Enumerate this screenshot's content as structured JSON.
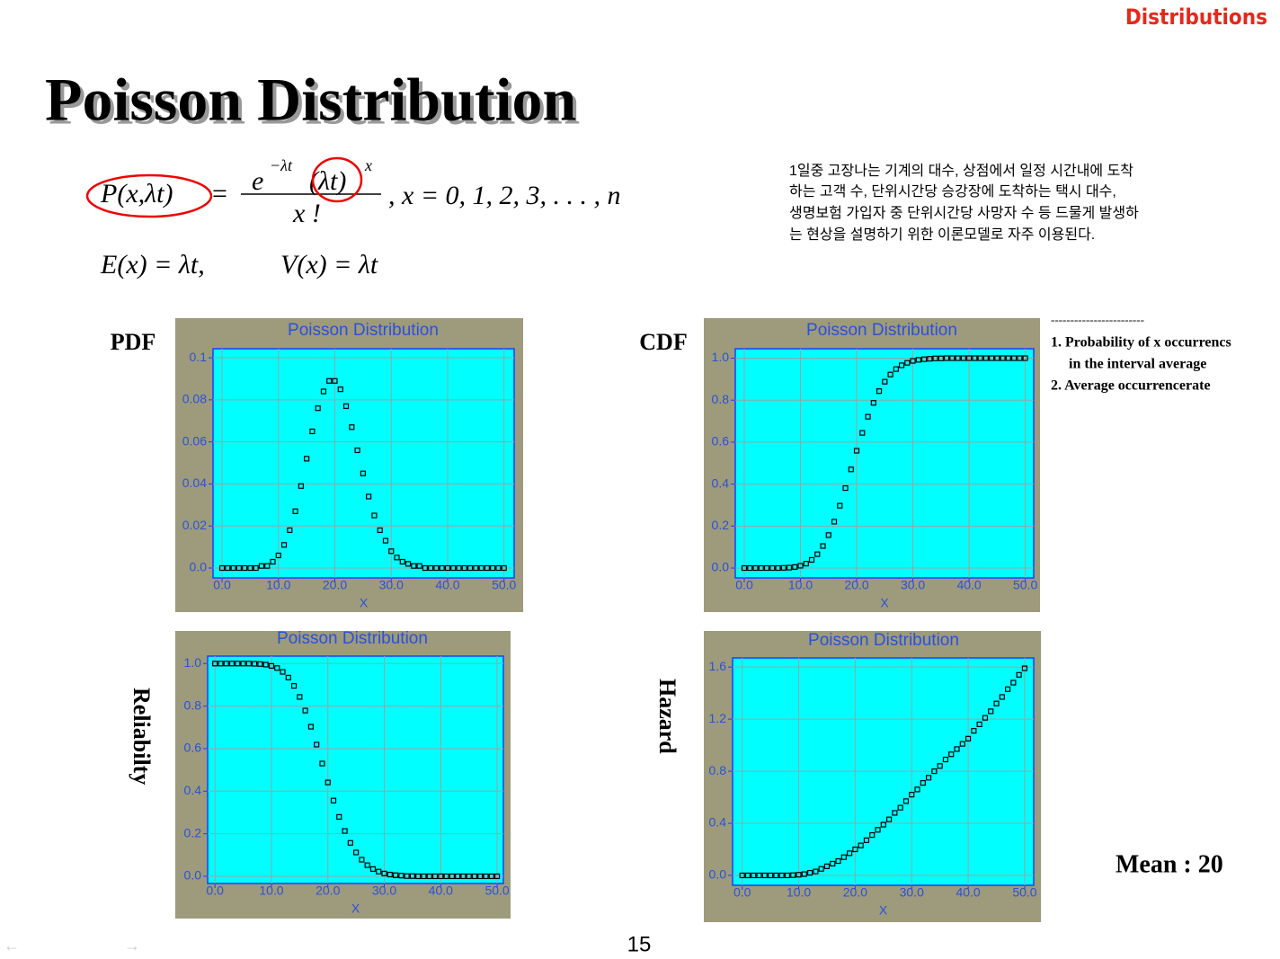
{
  "header": "Distributions",
  "title": "Poisson Distribution",
  "formula": {
    "lhs": "P(x,λt)",
    "eq": "=",
    "base": "e",
    "base_exp": "−λt",
    "mid": "(λt)",
    "mid_exp": "x",
    "denominator": "x !",
    "domain": ",    x = 0, 1, 2, 3, . . . , n",
    "mean": "E(x) = λt,",
    "variance": "V(x) = λt"
  },
  "description": [
    "1일중 고장나는 기계의 대수, 상점에서 일정 시간내에 도착",
    "하는 고객 수, 단위시간당 승강장에 도착하는 택시 대수,",
    "생명보험 가입자 중 단위시간당 사망자 수 등 드물게 발생하",
    "는 현상을 설명하기 위한 이론모델로 자주 이용된다."
  ],
  "notes": [
    "------------------------",
    "1. Probability of x occurrencs",
    "in the interval average",
    "2. Average occurrencerate"
  ],
  "mean_label": "Mean : 20",
  "page_number": "15",
  "chart_data": [
    {
      "type": "scatter",
      "side_label": "PDF",
      "title": "Poisson Distribution",
      "xlabel": "X",
      "color": "#000000",
      "grid": true,
      "x": [
        0,
        1,
        2,
        3,
        4,
        5,
        6,
        7,
        8,
        9,
        10,
        11,
        12,
        13,
        14,
        15,
        16,
        17,
        18,
        19,
        20,
        21,
        22,
        23,
        24,
        25,
        26,
        27,
        28,
        29,
        30,
        31,
        32,
        33,
        34,
        35,
        36,
        37,
        38,
        39,
        40,
        41,
        42,
        43,
        44,
        45,
        46,
        47,
        48,
        49,
        50
      ],
      "values": [
        0,
        0,
        0,
        0,
        0,
        0,
        0,
        0.001,
        0.001,
        0.003,
        0.006,
        0.011,
        0.018,
        0.027,
        0.039,
        0.052,
        0.065,
        0.076,
        0.084,
        0.089,
        0.089,
        0.085,
        0.077,
        0.067,
        0.056,
        0.045,
        0.034,
        0.025,
        0.018,
        0.013,
        0.008,
        0.005,
        0.003,
        0.002,
        0.001,
        0.001,
        0,
        0,
        0,
        0,
        0,
        0,
        0,
        0,
        0,
        0,
        0,
        0,
        0,
        0,
        0
      ],
      "xlim": [
        -1.6,
        51.8
      ],
      "ylim": [
        -0.0047,
        0.1043
      ],
      "xticks": [
        {
          "value": 0,
          "label": "0.0"
        },
        {
          "value": 10,
          "label": "10.0"
        },
        {
          "value": 20,
          "label": "20.0"
        },
        {
          "value": 30,
          "label": "30.0"
        },
        {
          "value": 40,
          "label": "40.0"
        },
        {
          "value": 50,
          "label": "50.0"
        }
      ],
      "yticks": [
        {
          "value": 0,
          "label": "0.0"
        },
        0.02,
        0.04,
        0.06,
        0.08,
        0.1
      ]
    },
    {
      "type": "scatter",
      "side_label": "CDF",
      "title": "Poisson Distribution",
      "xlabel": "X",
      "color": "#000000",
      "grid": true,
      "x": [
        0,
        1,
        2,
        3,
        4,
        5,
        6,
        7,
        8,
        9,
        10,
        11,
        12,
        13,
        14,
        15,
        16,
        17,
        18,
        19,
        20,
        21,
        22,
        23,
        24,
        25,
        26,
        27,
        28,
        29,
        30,
        31,
        32,
        33,
        34,
        35,
        36,
        37,
        38,
        39,
        40,
        41,
        42,
        43,
        44,
        45,
        46,
        47,
        48,
        49,
        50
      ],
      "values": [
        0,
        0,
        0,
        0,
        0,
        0,
        0,
        0.001,
        0.002,
        0.005,
        0.011,
        0.021,
        0.039,
        0.066,
        0.105,
        0.157,
        0.221,
        0.297,
        0.381,
        0.47,
        0.559,
        0.644,
        0.721,
        0.787,
        0.843,
        0.888,
        0.922,
        0.948,
        0.966,
        0.978,
        0.987,
        0.992,
        0.995,
        0.997,
        0.999,
        0.999,
        1,
        1,
        1,
        1,
        1,
        1,
        1,
        1,
        1,
        1,
        1,
        1,
        1,
        1,
        1
      ],
      "xlim": [
        -1.6,
        51.5
      ],
      "ylim": [
        -0.047,
        1.045
      ],
      "xticks": [
        {
          "value": 0,
          "label": "0.0"
        },
        {
          "value": 10,
          "label": "10.0"
        },
        {
          "value": 20,
          "label": "20.0"
        },
        {
          "value": 30,
          "label": "30.0"
        },
        {
          "value": 40,
          "label": "40.0"
        },
        {
          "value": 50,
          "label": "50.0"
        }
      ],
      "yticks": [
        {
          "value": 0,
          "label": "0.0"
        },
        0.2,
        0.4,
        0.6,
        0.8,
        {
          "value": 1,
          "label": "1.0"
        }
      ]
    },
    {
      "type": "scatter",
      "side_label": "Reliabilty",
      "title": "Poisson Distribution",
      "xlabel": "X",
      "color": "#000000",
      "grid": true,
      "x": [
        0,
        1,
        2,
        3,
        4,
        5,
        6,
        7,
        8,
        9,
        10,
        11,
        12,
        13,
        14,
        15,
        16,
        17,
        18,
        19,
        20,
        21,
        22,
        23,
        24,
        25,
        26,
        27,
        28,
        29,
        30,
        31,
        32,
        33,
        34,
        35,
        36,
        37,
        38,
        39,
        40,
        41,
        42,
        43,
        44,
        45,
        46,
        47,
        48,
        49,
        50
      ],
      "values": [
        1,
        1,
        1,
        1,
        1,
        1,
        1,
        0.999,
        0.998,
        0.995,
        0.989,
        0.979,
        0.961,
        0.934,
        0.895,
        0.843,
        0.779,
        0.703,
        0.619,
        0.53,
        0.441,
        0.356,
        0.279,
        0.213,
        0.157,
        0.112,
        0.078,
        0.052,
        0.034,
        0.022,
        0.013,
        0.008,
        0.005,
        0.003,
        0.001,
        0.001,
        0,
        0,
        0,
        0,
        0,
        0,
        0,
        0,
        0,
        0,
        0,
        0,
        0,
        0,
        0
      ],
      "xlim": [
        -1.3,
        51.1
      ],
      "ylim": [
        -0.034,
        1.035
      ],
      "xticks": [
        {
          "value": 0,
          "label": "0.0"
        },
        {
          "value": 10,
          "label": "10.0"
        },
        {
          "value": 20,
          "label": "20.0"
        },
        {
          "value": 30,
          "label": "30.0"
        },
        {
          "value": 40,
          "label": "40.0"
        },
        {
          "value": 50,
          "label": "50.0"
        }
      ],
      "yticks": [
        {
          "value": 0,
          "label": "0.0"
        },
        0.2,
        0.4,
        0.6,
        0.8,
        {
          "value": 1,
          "label": "1.0"
        }
      ]
    },
    {
      "type": "scatter",
      "side_label": "Hazard",
      "title": "Poisson Distribution",
      "xlabel": "X",
      "color": "#000000",
      "grid": true,
      "x": [
        0,
        1,
        2,
        3,
        4,
        5,
        6,
        7,
        8,
        9,
        10,
        11,
        12,
        13,
        14,
        15,
        16,
        17,
        18,
        19,
        20,
        21,
        22,
        23,
        24,
        25,
        26,
        27,
        28,
        29,
        30,
        31,
        32,
        33,
        34,
        35,
        36,
        37,
        38,
        39,
        40,
        41,
        42,
        43,
        44,
        45,
        46,
        47,
        48,
        49,
        50
      ],
      "values": [
        0,
        0,
        0,
        0,
        0,
        0,
        0,
        0,
        0,
        0.002,
        0.005,
        0.01,
        0.02,
        0.03,
        0.05,
        0.07,
        0.09,
        0.11,
        0.14,
        0.17,
        0.2,
        0.23,
        0.27,
        0.31,
        0.35,
        0.39,
        0.43,
        0.48,
        0.52,
        0.57,
        0.62,
        0.66,
        0.71,
        0.75,
        0.8,
        0.84,
        0.89,
        0.93,
        0.97,
        1.01,
        1.05,
        1.11,
        1.16,
        1.21,
        1.26,
        1.32,
        1.37,
        1.43,
        1.48,
        1.54,
        1.59
      ],
      "xlim": [
        -1.7,
        51.6
      ],
      "ylim": [
        -0.076,
        1.67
      ],
      "xticks": [
        {
          "value": 0,
          "label": "0.0"
        },
        {
          "value": 10,
          "label": "10.0"
        },
        {
          "value": 20,
          "label": "20.0"
        },
        {
          "value": 30,
          "label": "30.0"
        },
        {
          "value": 40,
          "label": "40.0"
        },
        {
          "value": 50,
          "label": "50.0"
        }
      ],
      "yticks": [
        {
          "value": 0,
          "label": "0.0"
        },
        0.4,
        0.8,
        1.2,
        1.6
      ]
    }
  ]
}
